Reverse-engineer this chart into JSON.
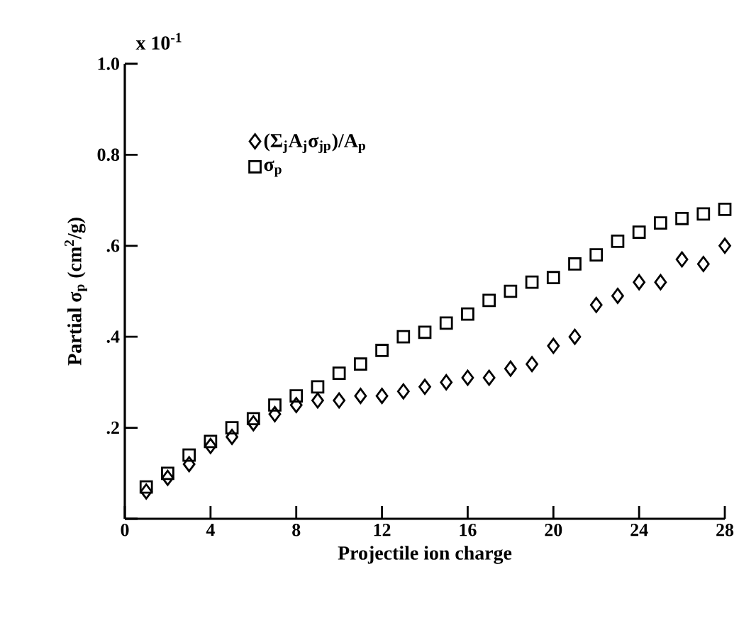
{
  "chart_data": {
    "type": "scatter",
    "xlabel": "Projectile ion charge",
    "ylabel": "Partial σ$_{p}$ (cm$^{2}$/g)",
    "annotations": [
      "x 10$^{-1}$"
    ],
    "x": [
      1,
      2,
      3,
      4,
      5,
      6,
      7,
      8,
      9,
      10,
      11,
      12,
      13,
      14,
      15,
      16,
      17,
      18,
      19,
      20,
      21,
      22,
      23,
      24,
      25,
      26,
      27,
      28
    ],
    "series": [
      {
        "name": "(Σ$_{j}$A$_{j}$σ$_{jp}$)/A$_{p}$",
        "color": "#000000",
        "marker": "diamond",
        "values": [
          0.06,
          0.09,
          0.12,
          0.16,
          0.18,
          0.21,
          0.23,
          0.25,
          0.26,
          0.26,
          0.27,
          0.27,
          0.28,
          0.29,
          0.3,
          0.31,
          0.31,
          0.33,
          0.34,
          0.38,
          0.4,
          0.47,
          0.49,
          0.52,
          0.52,
          0.57,
          0.56,
          0.6
        ]
      },
      {
        "name": "σ$_{p}$",
        "color": "#000000",
        "marker": "square",
        "values": [
          0.07,
          0.1,
          0.14,
          0.17,
          0.2,
          0.22,
          0.25,
          0.27,
          0.29,
          0.32,
          0.34,
          0.37,
          0.4,
          0.41,
          0.43,
          0.45,
          0.48,
          0.5,
          0.52,
          0.53,
          0.56,
          0.58,
          0.61,
          0.63,
          0.65,
          0.66,
          0.67,
          0.68
        ]
      }
    ],
    "xlim": [
      0,
      28
    ],
    "xticks": [
      0,
      4,
      8,
      12,
      16,
      20,
      24,
      28
    ],
    "ylim": [
      0,
      1.0
    ],
    "yticks": [
      {
        "value": 0,
        "label": null
      },
      {
        "value": 0.2,
        "label": ".2"
      },
      {
        "value": 0.4,
        "label": ".4"
      },
      {
        "value": 0.6,
        "label": ".6"
      },
      {
        "value": 0.8,
        "label": "0.8"
      },
      {
        "value": 1.0,
        "label": "1.0"
      }
    ],
    "legend": "top left"
  }
}
